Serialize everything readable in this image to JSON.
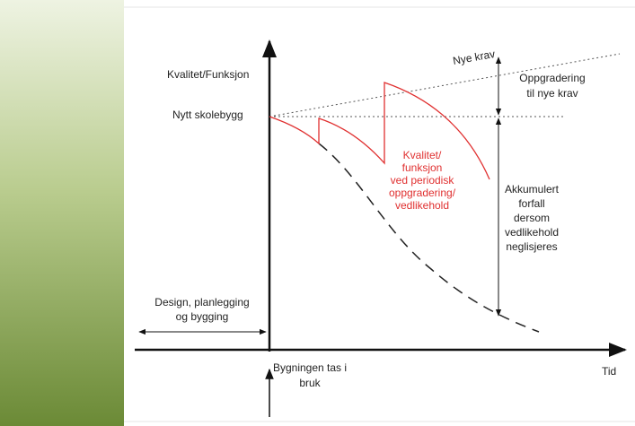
{
  "diagram": {
    "y_axis_label": "Kvalitet/Funksjon",
    "start_label": "Nytt skolebygg",
    "new_requirements": "Nye krav",
    "upgrade_label": [
      "Oppgradering",
      "til nye krav"
    ],
    "periodic_label": [
      "Kvalitet/",
      "funksjon",
      "ved periodisk",
      "oppgradering/",
      "vedlikehold"
    ],
    "decay_label": [
      "Akkumulert",
      "forfall",
      "dersom",
      "vedlikehold",
      "neglisjeres"
    ],
    "design_label": [
      "Design, planlegging",
      "og bygging"
    ],
    "x_axis_label": "Tid",
    "in_use_label": [
      "Bygningen  tas i",
      "bruk"
    ]
  }
}
